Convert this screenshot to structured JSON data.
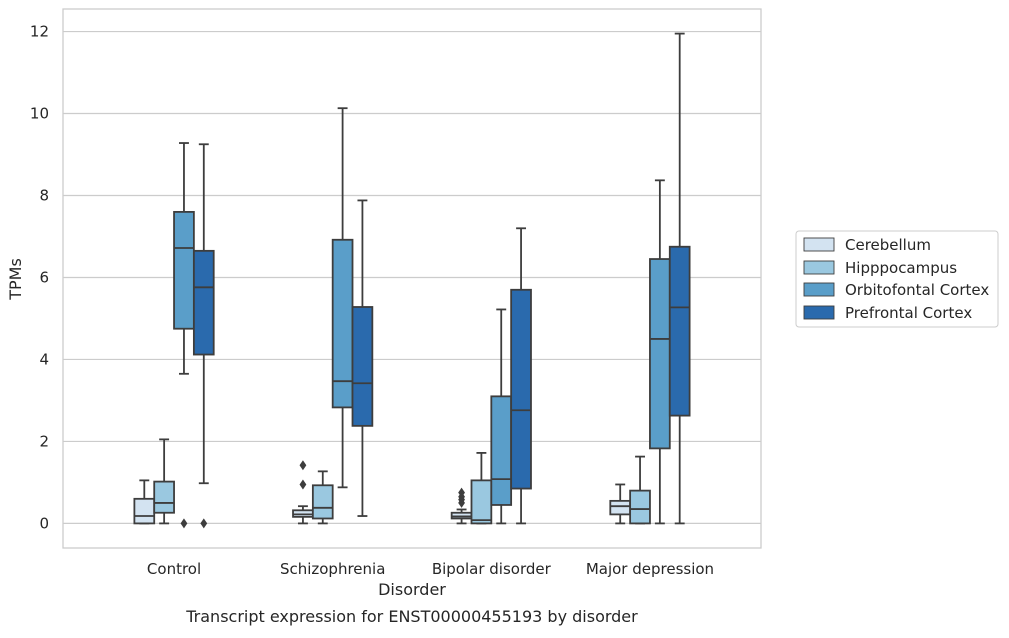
{
  "chart_data": {
    "type": "box",
    "title": "",
    "caption": "Transcript expression for ENST00000455193 by disorder",
    "xlabel": "Disorder",
    "ylabel": "TPMs",
    "categories": [
      "Control",
      "Schizophrenia",
      "Bipolar disorder",
      "Major depression"
    ],
    "ylim": [
      -0.6,
      12.55
    ],
    "yticks": [
      0,
      2,
      4,
      6,
      8,
      10,
      12
    ],
    "grid": "horizontal",
    "legend_position": "right",
    "series": [
      {
        "name": "Cerebellum",
        "color": "#d3e3f1",
        "boxes": [
          {
            "whislo": 0.0,
            "q1": 0.0,
            "med": 0.18,
            "q3": 0.6,
            "whishi": 1.05,
            "fliers": []
          },
          {
            "whislo": 0.0,
            "q1": 0.16,
            "med": 0.22,
            "q3": 0.32,
            "whishi": 0.42,
            "fliers": [
              0.95,
              1.42
            ]
          },
          {
            "whislo": 0.0,
            "q1": 0.12,
            "med": 0.17,
            "q3": 0.26,
            "whishi": 0.34,
            "fliers": [
              0.5,
              0.58,
              0.65,
              0.75
            ]
          },
          {
            "whislo": 0.0,
            "q1": 0.22,
            "med": 0.42,
            "q3": 0.55,
            "whishi": 0.95,
            "fliers": []
          }
        ]
      },
      {
        "name": "Hipppocampus",
        "color": "#9ac8e0",
        "boxes": [
          {
            "whislo": 0.0,
            "q1": 0.26,
            "med": 0.5,
            "q3": 1.02,
            "whishi": 2.05,
            "fliers": []
          },
          {
            "whislo": 0.0,
            "q1": 0.12,
            "med": 0.38,
            "q3": 0.93,
            "whishi": 1.27,
            "fliers": []
          },
          {
            "whislo": 0.0,
            "q1": 0.0,
            "med": 0.08,
            "q3": 1.05,
            "whishi": 1.72,
            "fliers": []
          },
          {
            "whislo": 0.0,
            "q1": 0.0,
            "med": 0.35,
            "q3": 0.8,
            "whishi": 1.63,
            "fliers": []
          }
        ]
      },
      {
        "name": "Orbitofontal Cortex",
        "color": "#5a9ec9",
        "boxes": [
          {
            "whislo": 3.65,
            "q1": 4.75,
            "med": 6.72,
            "q3": 7.6,
            "whishi": 9.28,
            "fliers": [
              0.0
            ]
          },
          {
            "whislo": 0.88,
            "q1": 2.83,
            "med": 3.47,
            "q3": 6.92,
            "whishi": 10.13,
            "fliers": []
          },
          {
            "whislo": 0.0,
            "q1": 0.45,
            "med": 1.08,
            "q3": 3.1,
            "whishi": 5.22,
            "fliers": []
          },
          {
            "whislo": 0.0,
            "q1": 1.83,
            "med": 4.5,
            "q3": 6.45,
            "whishi": 8.37,
            "fliers": []
          }
        ]
      },
      {
        "name": "Prefrontal Cortex",
        "color": "#2a6aad",
        "boxes": [
          {
            "whislo": 0.98,
            "q1": 4.12,
            "med": 5.76,
            "q3": 6.65,
            "whishi": 9.25,
            "fliers": [
              0.0
            ]
          },
          {
            "whislo": 0.18,
            "q1": 2.38,
            "med": 3.42,
            "q3": 5.28,
            "whishi": 7.88,
            "fliers": []
          },
          {
            "whislo": 0.0,
            "q1": 0.85,
            "med": 2.76,
            "q3": 5.7,
            "whishi": 7.2,
            "fliers": []
          },
          {
            "whislo": 0.0,
            "q1": 2.63,
            "med": 5.27,
            "q3": 6.75,
            "whishi": 11.95,
            "fliers": []
          }
        ]
      }
    ]
  }
}
